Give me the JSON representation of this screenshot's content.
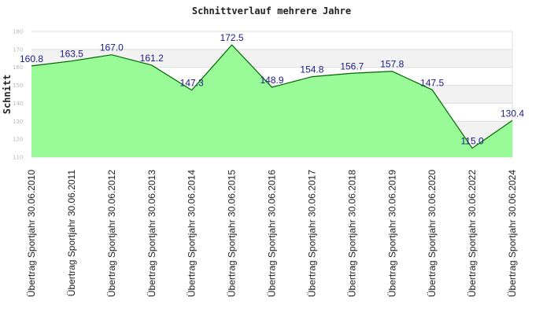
{
  "chart_data": {
    "type": "area",
    "title": "Schnittverlauf mehrere Jahre",
    "xlabel": "",
    "ylabel": "Schnitt",
    "categories": [
      "Übertrag Sportjahr 30.06.2010",
      "Übertrag Sportjahr 30.06.2011",
      "Übertrag Sportjahr 30.06.2012",
      "Übertrag Sportjahr 30.06.2013",
      "Übertrag Sportjahr 30.06.2014",
      "Übertrag Sportjahr 30.06.2015",
      "Übertrag Sportjahr 30.06.2016",
      "Übertrag Sportjahr 30.06.2017",
      "Übertrag Sportjahr 30.06.2018",
      "Übertrag Sportjahr 30.06.2019",
      "Übertrag Sportjahr 30.06.2020",
      "Übertrag Sportjahr 30.06.2022",
      "Übertrag Sportjahr 30.06.2024"
    ],
    "values": [
      160.8,
      163.5,
      167.0,
      161.2,
      147.3,
      172.5,
      148.9,
      154.8,
      156.7,
      157.8,
      147.5,
      115.0,
      130.4
    ],
    "value_labels": [
      "160.8",
      "163.5",
      "167.0",
      "161.2",
      "147.3",
      "172.5",
      "148.9",
      "154.8",
      "156.7",
      "157.8",
      "147.5",
      "115.0",
      "130.4"
    ],
    "ylim": [
      110,
      180
    ],
    "yticks": [
      110,
      120,
      130,
      140,
      150,
      160,
      170,
      180
    ],
    "ytick_labels": [
      "110",
      "120",
      "130",
      "140",
      "150",
      "160",
      "170",
      "180"
    ],
    "grid": true,
    "legend": "none",
    "colors": {
      "area_fill": "#98fb98",
      "line": "#006400",
      "band": "#f2f2f2",
      "grid": "#dcdcdc",
      "value_label": "#1a1a80"
    }
  }
}
